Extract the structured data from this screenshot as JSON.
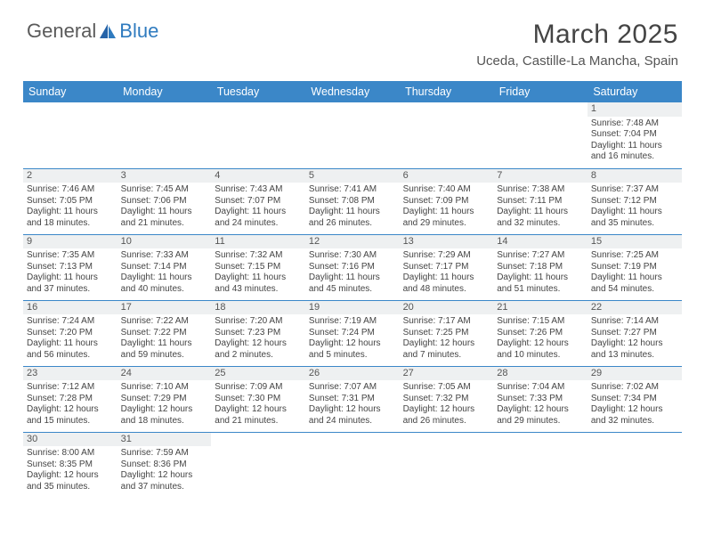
{
  "logo": {
    "text1": "General",
    "text2": "Blue"
  },
  "title": "March 2025",
  "location": "Uceda, Castille-La Mancha, Spain",
  "columns": [
    "Sunday",
    "Monday",
    "Tuesday",
    "Wednesday",
    "Thursday",
    "Friday",
    "Saturday"
  ],
  "colors": {
    "header_bg": "#3b87c8",
    "header_fg": "#ffffff",
    "daynum_bg": "#eef0f1",
    "border": "#3b87c8",
    "text": "#444444"
  },
  "weeks": [
    [
      null,
      null,
      null,
      null,
      null,
      null,
      {
        "n": "1",
        "sr": "Sunrise: 7:48 AM",
        "ss": "Sunset: 7:04 PM",
        "d1": "Daylight: 11 hours",
        "d2": "and 16 minutes."
      }
    ],
    [
      {
        "n": "2",
        "sr": "Sunrise: 7:46 AM",
        "ss": "Sunset: 7:05 PM",
        "d1": "Daylight: 11 hours",
        "d2": "and 18 minutes."
      },
      {
        "n": "3",
        "sr": "Sunrise: 7:45 AM",
        "ss": "Sunset: 7:06 PM",
        "d1": "Daylight: 11 hours",
        "d2": "and 21 minutes."
      },
      {
        "n": "4",
        "sr": "Sunrise: 7:43 AM",
        "ss": "Sunset: 7:07 PM",
        "d1": "Daylight: 11 hours",
        "d2": "and 24 minutes."
      },
      {
        "n": "5",
        "sr": "Sunrise: 7:41 AM",
        "ss": "Sunset: 7:08 PM",
        "d1": "Daylight: 11 hours",
        "d2": "and 26 minutes."
      },
      {
        "n": "6",
        "sr": "Sunrise: 7:40 AM",
        "ss": "Sunset: 7:09 PM",
        "d1": "Daylight: 11 hours",
        "d2": "and 29 minutes."
      },
      {
        "n": "7",
        "sr": "Sunrise: 7:38 AM",
        "ss": "Sunset: 7:11 PM",
        "d1": "Daylight: 11 hours",
        "d2": "and 32 minutes."
      },
      {
        "n": "8",
        "sr": "Sunrise: 7:37 AM",
        "ss": "Sunset: 7:12 PM",
        "d1": "Daylight: 11 hours",
        "d2": "and 35 minutes."
      }
    ],
    [
      {
        "n": "9",
        "sr": "Sunrise: 7:35 AM",
        "ss": "Sunset: 7:13 PM",
        "d1": "Daylight: 11 hours",
        "d2": "and 37 minutes."
      },
      {
        "n": "10",
        "sr": "Sunrise: 7:33 AM",
        "ss": "Sunset: 7:14 PM",
        "d1": "Daylight: 11 hours",
        "d2": "and 40 minutes."
      },
      {
        "n": "11",
        "sr": "Sunrise: 7:32 AM",
        "ss": "Sunset: 7:15 PM",
        "d1": "Daylight: 11 hours",
        "d2": "and 43 minutes."
      },
      {
        "n": "12",
        "sr": "Sunrise: 7:30 AM",
        "ss": "Sunset: 7:16 PM",
        "d1": "Daylight: 11 hours",
        "d2": "and 45 minutes."
      },
      {
        "n": "13",
        "sr": "Sunrise: 7:29 AM",
        "ss": "Sunset: 7:17 PM",
        "d1": "Daylight: 11 hours",
        "d2": "and 48 minutes."
      },
      {
        "n": "14",
        "sr": "Sunrise: 7:27 AM",
        "ss": "Sunset: 7:18 PM",
        "d1": "Daylight: 11 hours",
        "d2": "and 51 minutes."
      },
      {
        "n": "15",
        "sr": "Sunrise: 7:25 AM",
        "ss": "Sunset: 7:19 PM",
        "d1": "Daylight: 11 hours",
        "d2": "and 54 minutes."
      }
    ],
    [
      {
        "n": "16",
        "sr": "Sunrise: 7:24 AM",
        "ss": "Sunset: 7:20 PM",
        "d1": "Daylight: 11 hours",
        "d2": "and 56 minutes."
      },
      {
        "n": "17",
        "sr": "Sunrise: 7:22 AM",
        "ss": "Sunset: 7:22 PM",
        "d1": "Daylight: 11 hours",
        "d2": "and 59 minutes."
      },
      {
        "n": "18",
        "sr": "Sunrise: 7:20 AM",
        "ss": "Sunset: 7:23 PM",
        "d1": "Daylight: 12 hours",
        "d2": "and 2 minutes."
      },
      {
        "n": "19",
        "sr": "Sunrise: 7:19 AM",
        "ss": "Sunset: 7:24 PM",
        "d1": "Daylight: 12 hours",
        "d2": "and 5 minutes."
      },
      {
        "n": "20",
        "sr": "Sunrise: 7:17 AM",
        "ss": "Sunset: 7:25 PM",
        "d1": "Daylight: 12 hours",
        "d2": "and 7 minutes."
      },
      {
        "n": "21",
        "sr": "Sunrise: 7:15 AM",
        "ss": "Sunset: 7:26 PM",
        "d1": "Daylight: 12 hours",
        "d2": "and 10 minutes."
      },
      {
        "n": "22",
        "sr": "Sunrise: 7:14 AM",
        "ss": "Sunset: 7:27 PM",
        "d1": "Daylight: 12 hours",
        "d2": "and 13 minutes."
      }
    ],
    [
      {
        "n": "23",
        "sr": "Sunrise: 7:12 AM",
        "ss": "Sunset: 7:28 PM",
        "d1": "Daylight: 12 hours",
        "d2": "and 15 minutes."
      },
      {
        "n": "24",
        "sr": "Sunrise: 7:10 AM",
        "ss": "Sunset: 7:29 PM",
        "d1": "Daylight: 12 hours",
        "d2": "and 18 minutes."
      },
      {
        "n": "25",
        "sr": "Sunrise: 7:09 AM",
        "ss": "Sunset: 7:30 PM",
        "d1": "Daylight: 12 hours",
        "d2": "and 21 minutes."
      },
      {
        "n": "26",
        "sr": "Sunrise: 7:07 AM",
        "ss": "Sunset: 7:31 PM",
        "d1": "Daylight: 12 hours",
        "d2": "and 24 minutes."
      },
      {
        "n": "27",
        "sr": "Sunrise: 7:05 AM",
        "ss": "Sunset: 7:32 PM",
        "d1": "Daylight: 12 hours",
        "d2": "and 26 minutes."
      },
      {
        "n": "28",
        "sr": "Sunrise: 7:04 AM",
        "ss": "Sunset: 7:33 PM",
        "d1": "Daylight: 12 hours",
        "d2": "and 29 minutes."
      },
      {
        "n": "29",
        "sr": "Sunrise: 7:02 AM",
        "ss": "Sunset: 7:34 PM",
        "d1": "Daylight: 12 hours",
        "d2": "and 32 minutes."
      }
    ],
    [
      {
        "n": "30",
        "sr": "Sunrise: 8:00 AM",
        "ss": "Sunset: 8:35 PM",
        "d1": "Daylight: 12 hours",
        "d2": "and 35 minutes."
      },
      {
        "n": "31",
        "sr": "Sunrise: 7:59 AM",
        "ss": "Sunset: 8:36 PM",
        "d1": "Daylight: 12 hours",
        "d2": "and 37 minutes."
      },
      null,
      null,
      null,
      null,
      null
    ]
  ]
}
